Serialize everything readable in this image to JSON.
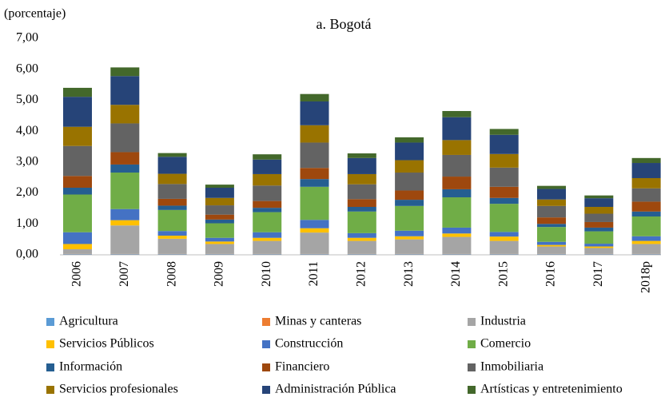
{
  "chart_data": {
    "type": "stacked_bar",
    "title": "a. Bogotá",
    "ylabel": "(porcentaje)",
    "categories": [
      "2006",
      "2007",
      "2008",
      "2009",
      "2010",
      "2011",
      "2012",
      "2013",
      "2014",
      "2015",
      "2016",
      "2017",
      "2018p"
    ],
    "ylim": [
      0,
      7
    ],
    "yticks": [
      {
        "value": 0,
        "label": "0,00"
      },
      {
        "value": 1,
        "label": "1,00"
      },
      {
        "value": 2,
        "label": "2,00"
      },
      {
        "value": 3,
        "label": "3,00"
      },
      {
        "value": 4,
        "label": "4,00"
      },
      {
        "value": 5,
        "label": "5,00"
      },
      {
        "value": 6,
        "label": "6,00"
      },
      {
        "value": 7,
        "label": "7,00"
      }
    ],
    "series": [
      {
        "name": "Agricultura",
        "color": "#5b9bd5",
        "values": [
          0.02,
          0.02,
          0.02,
          0.02,
          0.02,
          0.02,
          0.02,
          0.02,
          0.02,
          0.02,
          0.02,
          0.02,
          0.02
        ]
      },
      {
        "name": "Minas y canteras",
        "color": "#ed7d31",
        "values": [
          0.01,
          0.01,
          0.01,
          0.01,
          0.01,
          0.01,
          0.01,
          0.01,
          0.01,
          0.01,
          0.01,
          0.01,
          0.01
        ]
      },
      {
        "name": "Industria",
        "color": "#a5a5a5",
        "values": [
          0.15,
          0.92,
          0.49,
          0.32,
          0.42,
          0.69,
          0.42,
          0.47,
          0.55,
          0.42,
          0.24,
          0.19,
          0.32
        ]
      },
      {
        "name": "Servicios Públicos",
        "color": "#ffc000",
        "values": [
          0.17,
          0.17,
          0.1,
          0.08,
          0.1,
          0.14,
          0.1,
          0.1,
          0.11,
          0.14,
          0.05,
          0.05,
          0.1
        ]
      },
      {
        "name": "Construcción",
        "color": "#4472c4",
        "values": [
          0.38,
          0.36,
          0.15,
          0.12,
          0.18,
          0.27,
          0.15,
          0.18,
          0.19,
          0.15,
          0.1,
          0.09,
          0.15
        ]
      },
      {
        "name": "Comercio",
        "color": "#70ad47",
        "values": [
          1.22,
          1.18,
          0.68,
          0.47,
          0.65,
          1.07,
          0.7,
          0.8,
          0.98,
          0.91,
          0.48,
          0.4,
          0.64
        ]
      },
      {
        "name": "Información",
        "color": "#255e91",
        "values": [
          0.22,
          0.26,
          0.14,
          0.12,
          0.14,
          0.25,
          0.15,
          0.2,
          0.26,
          0.19,
          0.1,
          0.12,
          0.16
        ]
      },
      {
        "name": "Financiero",
        "color": "#9e480e",
        "values": [
          0.38,
          0.4,
          0.22,
          0.16,
          0.22,
          0.36,
          0.25,
          0.3,
          0.41,
          0.36,
          0.21,
          0.18,
          0.32
        ]
      },
      {
        "name": "Inmobiliaria",
        "color": "#636363",
        "values": [
          0.97,
          0.93,
          0.48,
          0.3,
          0.5,
          0.82,
          0.48,
          0.58,
          0.7,
          0.62,
          0.37,
          0.27,
          0.43
        ]
      },
      {
        "name": "Servicios profesionales",
        "color": "#997300",
        "values": [
          0.62,
          0.6,
          0.33,
          0.24,
          0.37,
          0.56,
          0.33,
          0.4,
          0.48,
          0.44,
          0.21,
          0.22,
          0.33
        ]
      },
      {
        "name": "Administración Pública",
        "color": "#264478",
        "values": [
          0.97,
          0.93,
          0.55,
          0.33,
          0.47,
          0.77,
          0.52,
          0.57,
          0.74,
          0.62,
          0.34,
          0.28,
          0.49
        ]
      },
      {
        "name": "Artísticas y entretenimiento",
        "color": "#43682b",
        "values": [
          0.29,
          0.28,
          0.12,
          0.1,
          0.17,
          0.24,
          0.15,
          0.17,
          0.2,
          0.19,
          0.1,
          0.09,
          0.16
        ]
      }
    ]
  }
}
